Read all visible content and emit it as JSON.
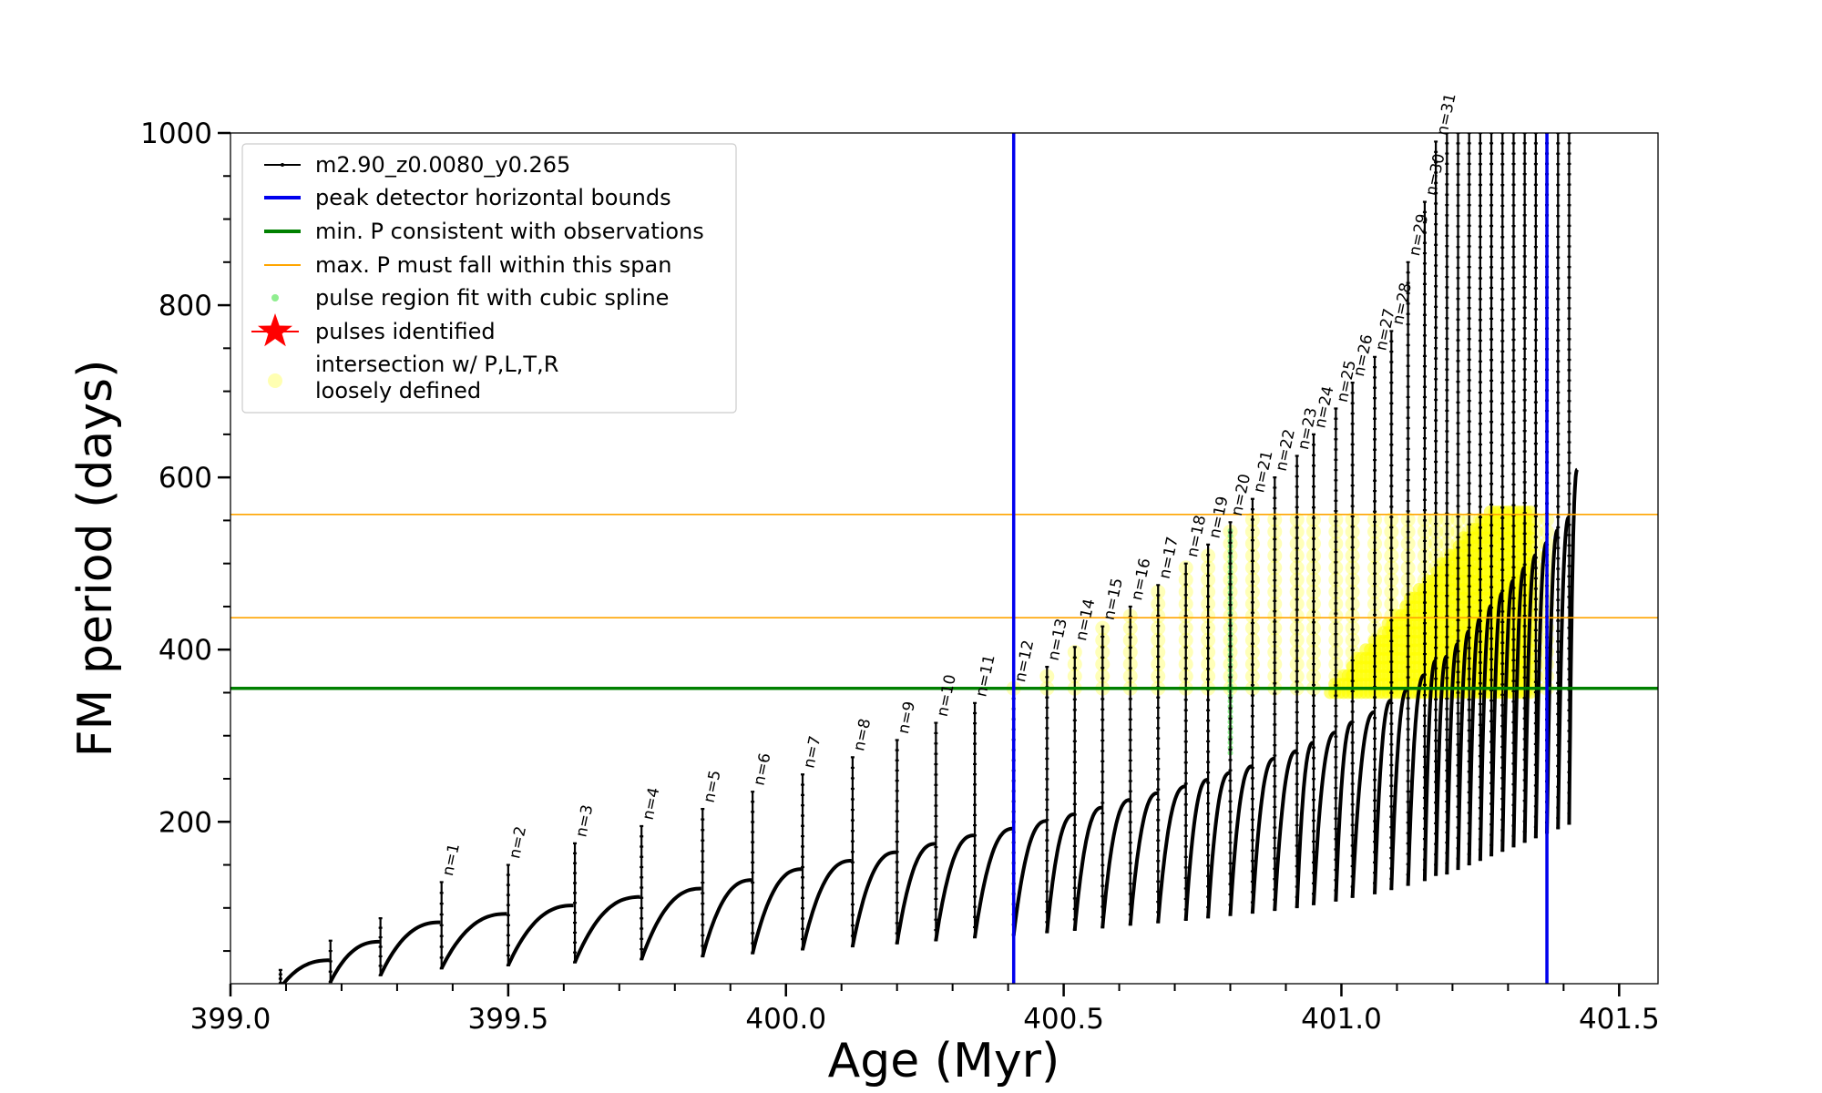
{
  "chart_data": {
    "type": "line",
    "xlabel": "Age (Myr)",
    "ylabel": "FM period (days)",
    "xlim": [
      399.0,
      401.57
    ],
    "ylim": [
      12,
      1000
    ],
    "x_ticks": [
      399.0,
      399.5,
      400.0,
      400.5,
      401.0,
      401.5
    ],
    "x_tick_labels": [
      "399.0",
      "399.5",
      "400.0",
      "400.5",
      "401.0",
      "401.5"
    ],
    "y_ticks": [
      200,
      400,
      600,
      800,
      1000
    ],
    "y_tick_labels": [
      "200",
      "400",
      "600",
      "800",
      "1000"
    ],
    "grid": false,
    "legend_position": "upper-left",
    "legend": [
      {
        "label": "m2.90_z0.0080_y0.265",
        "style": "black-line-dots"
      },
      {
        "label": "peak detector horizontal bounds",
        "style": "blue-line"
      },
      {
        "label": "min. P consistent with observations",
        "style": "green-line"
      },
      {
        "label": "max. P must fall within this span",
        "style": "orange-line"
      },
      {
        "label": "pulse region fit with cubic spline",
        "style": "lightgreen-dot"
      },
      {
        "label": "pulses identified",
        "style": "red-star"
      },
      {
        "label": "intersection w/ P,L,T,R",
        "label2": "loosely defined",
        "style": "yellow-dot"
      }
    ],
    "peak_detector_bounds_x": [
      400.41,
      401.37
    ],
    "min_period_line_y": 355,
    "max_period_span_y": [
      437,
      557
    ],
    "pulses": [
      {
        "label": "n=1",
        "x": 399.38,
        "peak": 130,
        "base": 85
      },
      {
        "label": "n=2",
        "x": 399.5,
        "peak": 150,
        "base": 95
      },
      {
        "label": "n=3",
        "x": 399.62,
        "peak": 175,
        "base": 105
      },
      {
        "label": "n=4",
        "x": 399.74,
        "peak": 195,
        "base": 115
      },
      {
        "label": "n=5",
        "x": 399.85,
        "peak": 215,
        "base": 125
      },
      {
        "label": "n=6",
        "x": 399.94,
        "peak": 235,
        "base": 135
      },
      {
        "label": "n=7",
        "x": 400.03,
        "peak": 255,
        "base": 148
      },
      {
        "label": "n=8",
        "x": 400.12,
        "peak": 275,
        "base": 158
      },
      {
        "label": "n=9",
        "x": 400.2,
        "peak": 295,
        "base": 168
      },
      {
        "label": "n=10",
        "x": 400.27,
        "peak": 315,
        "base": 178
      },
      {
        "label": "n=11",
        "x": 400.34,
        "peak": 338,
        "base": 188
      },
      {
        "label": "n=12",
        "x": 400.41,
        "peak": 355,
        "base": 196
      },
      {
        "label": "n=13",
        "x": 400.47,
        "peak": 380,
        "base": 205
      },
      {
        "label": "n=14",
        "x": 400.52,
        "peak": 403,
        "base": 213
      },
      {
        "label": "n=15",
        "x": 400.57,
        "peak": 427,
        "base": 221
      },
      {
        "label": "n=16",
        "x": 400.62,
        "peak": 450,
        "base": 230
      },
      {
        "label": "n=17",
        "x": 400.67,
        "peak": 475,
        "base": 238
      },
      {
        "label": "n=18",
        "x": 400.72,
        "peak": 500,
        "base": 246
      },
      {
        "label": "n=19",
        "x": 400.76,
        "peak": 522,
        "base": 254
      },
      {
        "label": "n=20",
        "x": 400.8,
        "peak": 548,
        "base": 262
      },
      {
        "label": "n=21",
        "x": 400.84,
        "peak": 575,
        "base": 270
      },
      {
        "label": "n=22",
        "x": 400.88,
        "peak": 600,
        "base": 279
      },
      {
        "label": "n=23",
        "x": 400.92,
        "peak": 625,
        "base": 288
      },
      {
        "label": "n=24",
        "x": 400.95,
        "peak": 650,
        "base": 298
      },
      {
        "label": "n=25",
        "x": 400.99,
        "peak": 680,
        "base": 310
      },
      {
        "label": "n=26",
        "x": 401.02,
        "peak": 710,
        "base": 322
      },
      {
        "label": "n=27",
        "x": 401.06,
        "peak": 740,
        "base": 334
      },
      {
        "label": "n=28",
        "x": 401.09,
        "peak": 770,
        "base": 348
      },
      {
        "label": "n=29",
        "x": 401.12,
        "peak": 850,
        "base": 362
      },
      {
        "label": "n=30",
        "x": 401.15,
        "peak": 920,
        "base": 378
      },
      {
        "label": "n=31",
        "x": 401.17,
        "peak": 990,
        "base": 395
      }
    ],
    "extra_pulses_x": [
      399.09,
      399.18,
      399.27,
      401.19,
      401.21,
      401.23,
      401.25,
      401.27,
      401.29,
      401.31,
      401.33,
      401.35,
      401.37,
      401.39,
      401.41
    ]
  }
}
